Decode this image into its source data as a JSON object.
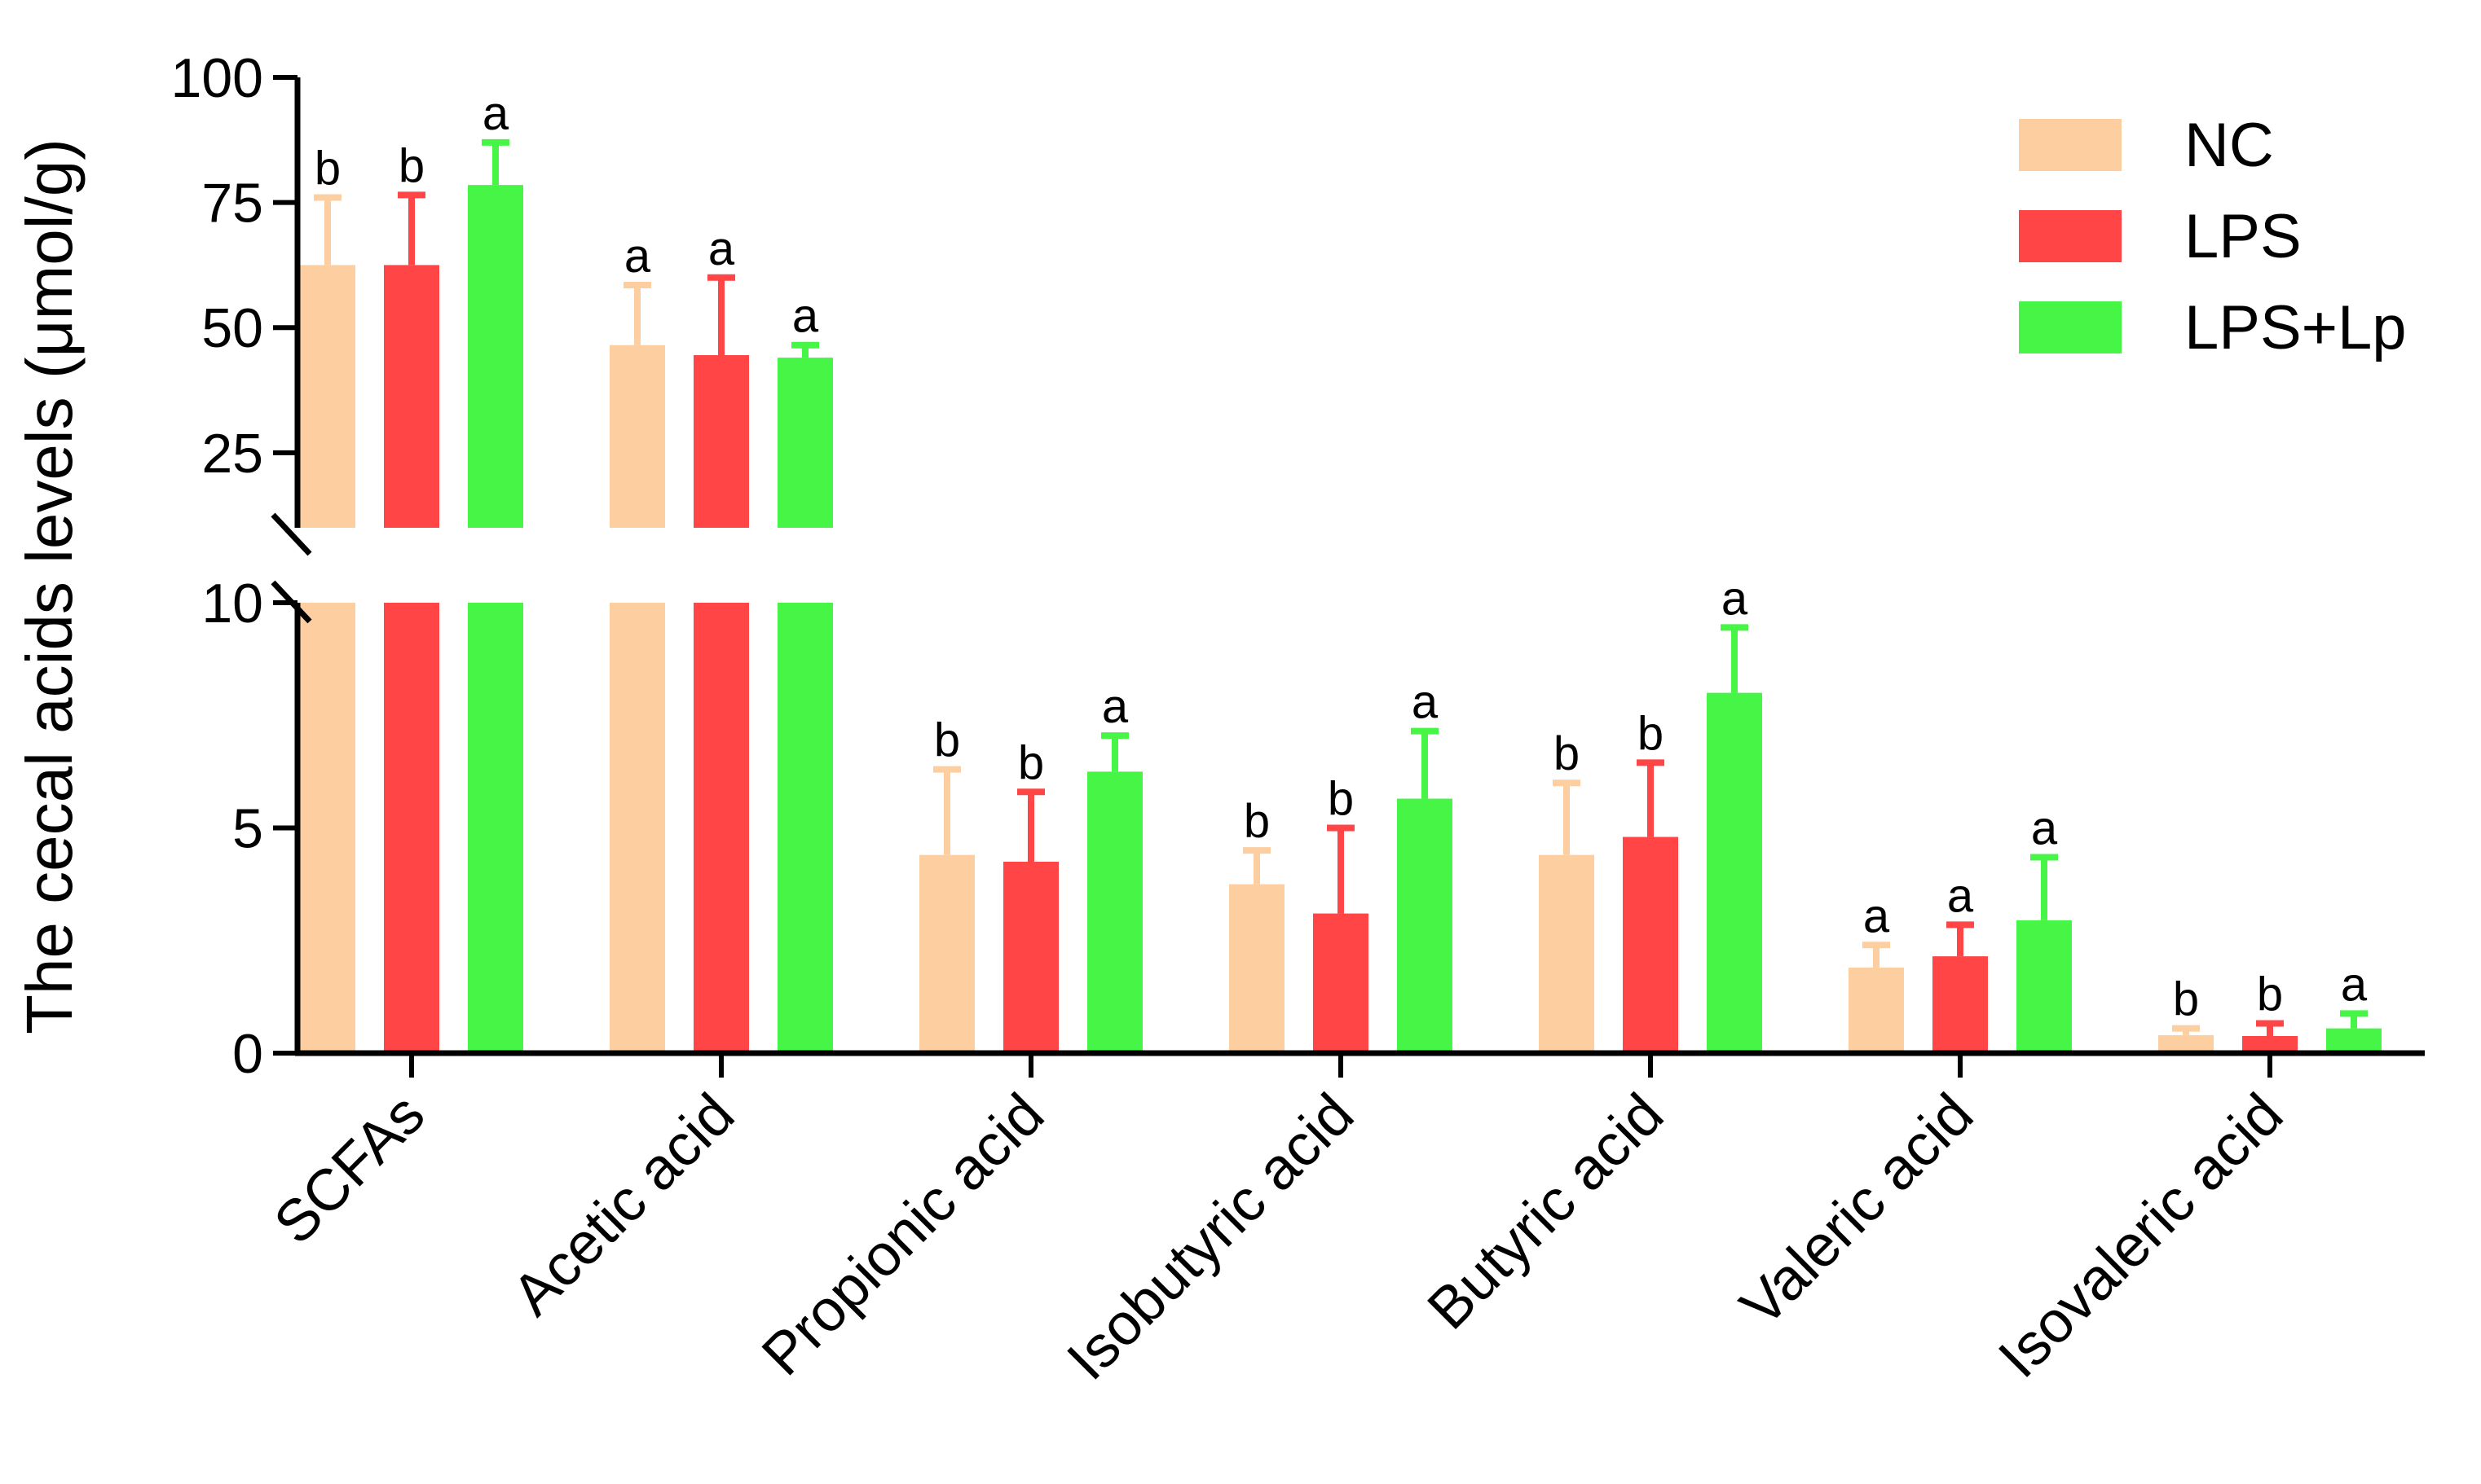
{
  "chart_data": {
    "type": "bar",
    "title": "",
    "xlabel": "",
    "ylabel": "The cecal acids levels (μmol/g)",
    "axis_break": {
      "lower_range": [
        0,
        10
      ],
      "upper_range": [
        10,
        100
      ]
    },
    "ylim": [
      0,
      100
    ],
    "lower_yticks": [
      "0",
      "5",
      "10"
    ],
    "upper_yticks": [
      "25",
      "50",
      "75",
      "100"
    ],
    "legend_position": "top-right",
    "categories": [
      "SCFAs",
      "Acetic acid",
      "Propionic acid",
      "Isobutyric acid",
      "Butyric acid",
      "Valeric acid",
      "Isovaleric acid"
    ],
    "series": [
      {
        "name": "NC",
        "color": "#FDCFA0",
        "values": [
          62.5,
          46.5,
          4.4,
          3.75,
          4.4,
          1.9,
          0.4
        ],
        "errors": [
          13.5,
          12.0,
          1.9,
          0.75,
          1.6,
          0.5,
          0.15
        ],
        "letters": [
          "b",
          "a",
          "b",
          "b",
          "b",
          "a",
          "b"
        ]
      },
      {
        "name": "LPS",
        "color": "#FF4545",
        "values": [
          62.5,
          44.5,
          4.25,
          3.1,
          4.8,
          2.15,
          0.38
        ],
        "errors": [
          14.0,
          15.5,
          1.55,
          1.9,
          1.65,
          0.7,
          0.28
        ],
        "letters": [
          "b",
          "a",
          "b",
          "b",
          "b",
          "a",
          "b"
        ]
      },
      {
        "name": "LPS+Lp",
        "color": "#47F547",
        "values": [
          78.5,
          44.0,
          6.25,
          5.65,
          8.0,
          2.95,
          0.55
        ],
        "errors": [
          8.5,
          2.5,
          0.8,
          1.5,
          1.45,
          1.4,
          0.33
        ],
        "letters": [
          "a",
          "a",
          "a",
          "a",
          "a",
          "a",
          "a"
        ]
      }
    ]
  }
}
